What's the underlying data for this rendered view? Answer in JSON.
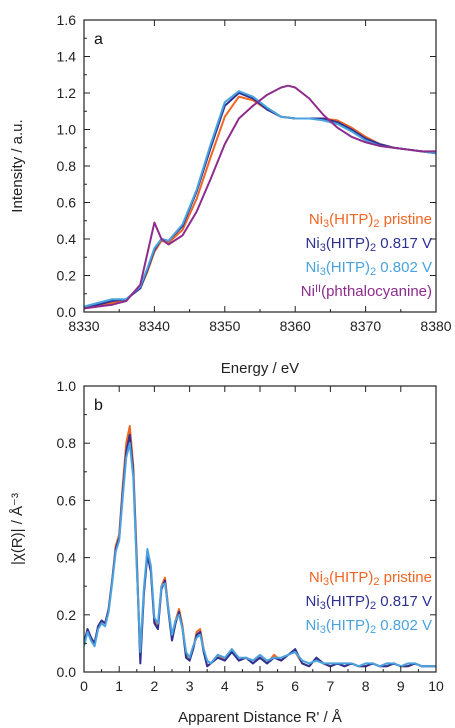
{
  "colors": {
    "pristine": "#f26522",
    "v0817": "#2e3192",
    "v0802": "#4aa3df",
    "phthalocyanine": "#8e2c8e",
    "axis": "#222222"
  },
  "chart_data": [
    {
      "panel": "a",
      "type": "line",
      "xlabel": "Energy / eV",
      "ylabel": "Intensity / a.u.",
      "xlim": [
        8330,
        8380
      ],
      "ylim": [
        0.0,
        1.6
      ],
      "xticks": [
        "8330",
        "8340",
        "8350",
        "8360",
        "8370",
        "8380"
      ],
      "yticks": [
        "0.0",
        "0.2",
        "0.4",
        "0.6",
        "0.8",
        "1.0",
        "1.2",
        "1.4",
        "1.6"
      ],
      "legend_position": "lower-right",
      "legend": [
        {
          "key": "pristine",
          "main": "Ni",
          "sub": "3",
          "mid": "(HITP)",
          "sub2": "2",
          "tail": " pristine"
        },
        {
          "key": "v0817",
          "main": "Ni",
          "sub": "3",
          "mid": "(HITP)",
          "sub2": "2",
          "tail": " 0.817 V"
        },
        {
          "key": "v0802",
          "main": "Ni",
          "sub": "3",
          "mid": "(HITP)",
          "sub2": "2",
          "tail": " 0.802 V"
        },
        {
          "key": "phthalocyanine",
          "main": "Ni",
          "sup": "II",
          "tail": "(phthalocyanine)"
        }
      ],
      "series": [
        {
          "key": "pristine",
          "x": [
            8330,
            8332,
            8334,
            8336,
            8338,
            8339,
            8340,
            8341,
            8342,
            8344,
            8346,
            8348,
            8350,
            8352,
            8354,
            8356,
            8358,
            8360,
            8362,
            8364,
            8366,
            8368,
            8370,
            8372,
            8374,
            8376,
            8378,
            8380
          ],
          "y": [
            0.02,
            0.03,
            0.05,
            0.07,
            0.13,
            0.22,
            0.33,
            0.39,
            0.38,
            0.45,
            0.62,
            0.85,
            1.07,
            1.18,
            1.16,
            1.11,
            1.07,
            1.06,
            1.06,
            1.06,
            1.05,
            1.01,
            0.96,
            0.92,
            0.9,
            0.89,
            0.88,
            0.87
          ]
        },
        {
          "key": "v0817",
          "x": [
            8330,
            8332,
            8334,
            8336,
            8338,
            8339,
            8340,
            8341,
            8342,
            8344,
            8346,
            8348,
            8350,
            8352,
            8354,
            8356,
            8358,
            8360,
            8362,
            8364,
            8366,
            8368,
            8370,
            8372,
            8374,
            8376,
            8378,
            8380
          ],
          "y": [
            0.02,
            0.04,
            0.06,
            0.07,
            0.13,
            0.23,
            0.34,
            0.4,
            0.39,
            0.47,
            0.66,
            0.9,
            1.13,
            1.2,
            1.17,
            1.11,
            1.07,
            1.06,
            1.06,
            1.06,
            1.04,
            1.0,
            0.95,
            0.92,
            0.9,
            0.89,
            0.88,
            0.87
          ]
        },
        {
          "key": "v0802",
          "x": [
            8330,
            8332,
            8334,
            8336,
            8338,
            8339,
            8340,
            8341,
            8342,
            8344,
            8346,
            8348,
            8350,
            8352,
            8354,
            8356,
            8358,
            8360,
            8362,
            8364,
            8366,
            8368,
            8370,
            8372,
            8374,
            8376,
            8378,
            8380
          ],
          "y": [
            0.03,
            0.05,
            0.07,
            0.07,
            0.14,
            0.24,
            0.35,
            0.4,
            0.39,
            0.48,
            0.67,
            0.92,
            1.15,
            1.21,
            1.18,
            1.12,
            1.07,
            1.06,
            1.06,
            1.05,
            1.03,
            0.99,
            0.94,
            0.91,
            0.9,
            0.89,
            0.88,
            0.87
          ]
        },
        {
          "key": "phthalocyanine",
          "x": [
            8330,
            8332,
            8334,
            8336,
            8338,
            8339,
            8340,
            8341,
            8342,
            8344,
            8346,
            8348,
            8350,
            8352,
            8354,
            8356,
            8358,
            8359,
            8360,
            8362,
            8364,
            8366,
            8368,
            8370,
            8372,
            8374,
            8376,
            8378,
            8380
          ],
          "y": [
            0.02,
            0.03,
            0.04,
            0.06,
            0.15,
            0.32,
            0.49,
            0.4,
            0.37,
            0.42,
            0.55,
            0.73,
            0.92,
            1.06,
            1.13,
            1.19,
            1.23,
            1.24,
            1.23,
            1.17,
            1.08,
            1.01,
            0.96,
            0.93,
            0.91,
            0.9,
            0.89,
            0.88,
            0.88
          ]
        }
      ]
    },
    {
      "panel": "b",
      "type": "line",
      "xlabel": "Apparent Distance R' / Å",
      "ylabel": "|χ(R)| / Å⁻³",
      "xlim": [
        0,
        10
      ],
      "ylim": [
        0.0,
        1.0
      ],
      "xticks": [
        "0",
        "1",
        "2",
        "3",
        "4",
        "5",
        "6",
        "7",
        "8",
        "9",
        "10"
      ],
      "yticks": [
        "0.0",
        "0.2",
        "0.4",
        "0.6",
        "0.8",
        "1.0"
      ],
      "legend_position": "lower-right",
      "legend": [
        {
          "key": "pristine",
          "main": "Ni",
          "sub": "3",
          "mid": "(HITP)",
          "sub2": "2",
          "tail": " pristine"
        },
        {
          "key": "v0817",
          "main": "Ni",
          "sub": "3",
          "mid": "(HITP)",
          "sub2": "2",
          "tail": " 0.817 V"
        },
        {
          "key": "v0802",
          "main": "Ni",
          "sub": "3",
          "mid": "(HITP)",
          "sub2": "2",
          "tail": " 0.802 V"
        }
      ],
      "series": [
        {
          "key": "pristine",
          "x": [
            0,
            0.1,
            0.2,
            0.3,
            0.4,
            0.5,
            0.6,
            0.7,
            0.8,
            0.9,
            1.0,
            1.1,
            1.2,
            1.3,
            1.4,
            1.5,
            1.6,
            1.7,
            1.8,
            1.9,
            2.0,
            2.1,
            2.2,
            2.3,
            2.4,
            2.5,
            2.6,
            2.7,
            2.8,
            2.9,
            3.0,
            3.1,
            3.2,
            3.3,
            3.4,
            3.5,
            3.6,
            3.8,
            4.0,
            4.2,
            4.4,
            4.6,
            4.8,
            5.0,
            5.2,
            5.4,
            5.6,
            5.8,
            6.0,
            6.2,
            6.4,
            6.6,
            6.8,
            7.0,
            7.2,
            7.4,
            7.6,
            7.8,
            8.0,
            8.2,
            8.4,
            8.6,
            8.8,
            9.0,
            9.2,
            9.4,
            9.6,
            9.8,
            10.0
          ],
          "y": [
            0.1,
            0.15,
            0.12,
            0.1,
            0.16,
            0.18,
            0.17,
            0.22,
            0.32,
            0.44,
            0.48,
            0.65,
            0.8,
            0.86,
            0.72,
            0.4,
            0.05,
            0.28,
            0.42,
            0.36,
            0.18,
            0.16,
            0.3,
            0.33,
            0.22,
            0.12,
            0.18,
            0.22,
            0.16,
            0.06,
            0.04,
            0.08,
            0.14,
            0.15,
            0.08,
            0.02,
            0.03,
            0.06,
            0.04,
            0.08,
            0.04,
            0.05,
            0.04,
            0.05,
            0.03,
            0.06,
            0.04,
            0.06,
            0.07,
            0.03,
            0.02,
            0.05,
            0.03,
            0.02,
            0.03,
            0.02,
            0.03,
            0.02,
            0.02,
            0.03,
            0.02,
            0.02,
            0.03,
            0.02,
            0.02,
            0.03,
            0.02,
            0.02,
            0.02
          ]
        },
        {
          "key": "v0817",
          "x": [
            0,
            0.1,
            0.2,
            0.3,
            0.4,
            0.5,
            0.6,
            0.7,
            0.8,
            0.9,
            1.0,
            1.1,
            1.2,
            1.3,
            1.4,
            1.5,
            1.6,
            1.7,
            1.8,
            1.9,
            2.0,
            2.1,
            2.2,
            2.3,
            2.4,
            2.5,
            2.6,
            2.7,
            2.8,
            2.9,
            3.0,
            3.1,
            3.2,
            3.3,
            3.4,
            3.5,
            3.6,
            3.8,
            4.0,
            4.2,
            4.4,
            4.6,
            4.8,
            5.0,
            5.2,
            5.4,
            5.6,
            5.8,
            6.0,
            6.2,
            6.4,
            6.6,
            6.8,
            7.0,
            7.2,
            7.4,
            7.6,
            7.8,
            8.0,
            8.2,
            8.4,
            8.6,
            8.8,
            9.0,
            9.2,
            9.4,
            9.6,
            9.8,
            10.0
          ],
          "y": [
            0.1,
            0.15,
            0.12,
            0.1,
            0.16,
            0.18,
            0.17,
            0.22,
            0.32,
            0.43,
            0.47,
            0.63,
            0.77,
            0.83,
            0.7,
            0.38,
            0.03,
            0.27,
            0.41,
            0.35,
            0.17,
            0.15,
            0.29,
            0.32,
            0.21,
            0.11,
            0.17,
            0.21,
            0.15,
            0.05,
            0.04,
            0.08,
            0.13,
            0.14,
            0.07,
            0.02,
            0.03,
            0.05,
            0.04,
            0.07,
            0.04,
            0.05,
            0.03,
            0.05,
            0.03,
            0.05,
            0.04,
            0.06,
            0.08,
            0.03,
            0.02,
            0.05,
            0.03,
            0.02,
            0.03,
            0.02,
            0.03,
            0.02,
            0.02,
            0.03,
            0.02,
            0.02,
            0.03,
            0.02,
            0.02,
            0.03,
            0.02,
            0.02,
            0.02
          ]
        },
        {
          "key": "v0802",
          "x": [
            0,
            0.1,
            0.2,
            0.3,
            0.4,
            0.5,
            0.6,
            0.7,
            0.8,
            0.9,
            1.0,
            1.1,
            1.2,
            1.3,
            1.4,
            1.5,
            1.6,
            1.7,
            1.8,
            1.9,
            2.0,
            2.1,
            2.2,
            2.3,
            2.4,
            2.5,
            2.6,
            2.7,
            2.8,
            2.9,
            3.0,
            3.1,
            3.2,
            3.3,
            3.4,
            3.5,
            3.6,
            3.8,
            4.0,
            4.2,
            4.4,
            4.6,
            4.8,
            5.0,
            5.2,
            5.4,
            5.6,
            5.8,
            6.0,
            6.2,
            6.4,
            6.6,
            6.8,
            7.0,
            7.2,
            7.4,
            7.6,
            7.8,
            8.0,
            8.2,
            8.4,
            8.6,
            8.8,
            9.0,
            9.2,
            9.4,
            9.6,
            9.8,
            10.0
          ],
          "y": [
            0.09,
            0.14,
            0.11,
            0.09,
            0.15,
            0.17,
            0.16,
            0.21,
            0.31,
            0.42,
            0.46,
            0.61,
            0.75,
            0.8,
            0.68,
            0.36,
            0.07,
            0.29,
            0.43,
            0.37,
            0.19,
            0.17,
            0.3,
            0.31,
            0.22,
            0.13,
            0.18,
            0.2,
            0.15,
            0.07,
            0.05,
            0.09,
            0.12,
            0.13,
            0.08,
            0.04,
            0.03,
            0.06,
            0.05,
            0.08,
            0.05,
            0.05,
            0.04,
            0.06,
            0.04,
            0.05,
            0.05,
            0.06,
            0.07,
            0.04,
            0.03,
            0.04,
            0.03,
            0.03,
            0.03,
            0.03,
            0.03,
            0.02,
            0.03,
            0.03,
            0.02,
            0.03,
            0.03,
            0.02,
            0.03,
            0.03,
            0.02,
            0.02,
            0.02
          ]
        }
      ]
    }
  ]
}
